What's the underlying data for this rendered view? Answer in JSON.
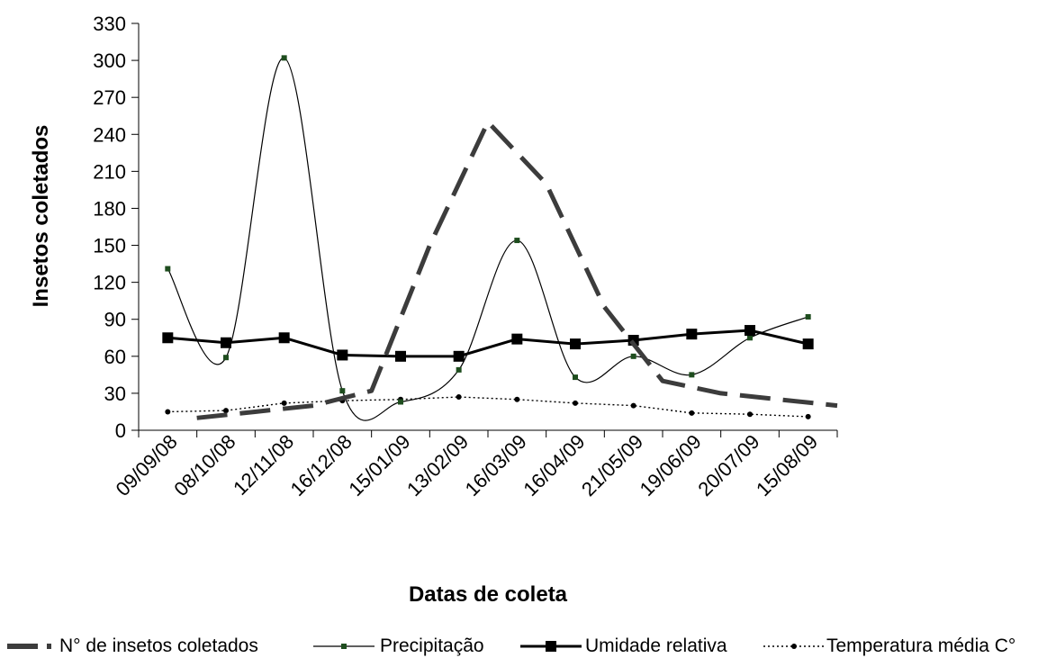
{
  "chart_data": {
    "type": "line",
    "title": "",
    "xlabel": "Datas de coleta",
    "ylabel": "Insetos coletados",
    "ylim": [
      0,
      330
    ],
    "yticks": [
      0,
      30,
      60,
      90,
      120,
      150,
      180,
      210,
      240,
      270,
      300,
      330
    ],
    "categories": [
      "09/09/08",
      "08/10/08",
      "12/11/08",
      "16/12/08",
      "15/01/09",
      "13/02/09",
      "16/03/09",
      "16/04/09",
      "21/05/09",
      "19/06/09",
      "20/07/09",
      "15/08/09"
    ],
    "grid": false,
    "legend_position": "bottom",
    "series": [
      {
        "name": "N° de insetos coletados",
        "values": [
          10,
          15,
          20,
          32,
          150,
          250,
          200,
          100,
          40,
          30,
          25,
          20
        ],
        "color": "#3c3c3c",
        "style": "dashed"
      },
      {
        "name": "Precipitação",
        "values": [
          131,
          59,
          302,
          32,
          23,
          49,
          154,
          43,
          60,
          45,
          75,
          92
        ],
        "color": "#000000",
        "marker_color": "#1e4d1e",
        "style": "smooth-thin"
      },
      {
        "name": "Umidade relativa",
        "values": [
          75,
          71,
          75,
          61,
          60,
          60,
          74,
          70,
          73,
          78,
          81,
          70
        ],
        "color": "#000000",
        "style": "solid-square"
      },
      {
        "name": "Temperatura média C°",
        "values": [
          15,
          16,
          22,
          24,
          25,
          27,
          25,
          22,
          20,
          14,
          13,
          11
        ],
        "color": "#000000",
        "style": "dotted"
      }
    ]
  },
  "legend": {
    "items": [
      {
        "label": "N° de insetos coletados"
      },
      {
        "label": "Precipitação"
      },
      {
        "label": "Umidade relativa"
      },
      {
        "label": "Temperatura média C°"
      }
    ]
  }
}
